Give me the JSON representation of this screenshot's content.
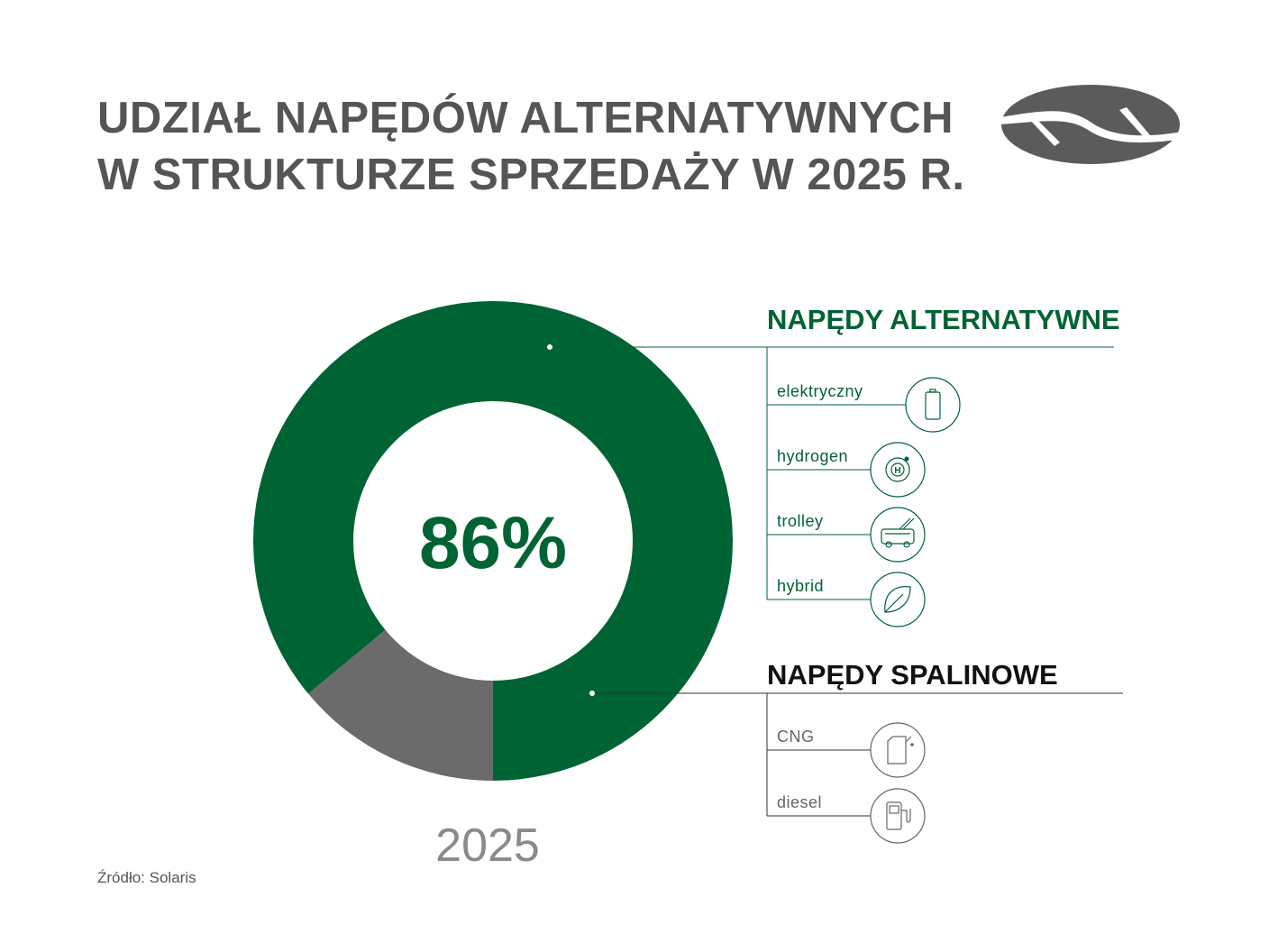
{
  "title_lines": [
    "UDZIAŁ NAPĘDÓW ALTERNATYWNYCH",
    "W STRUKTURZE SPRZEDAŻY W 2025 R."
  ],
  "source": "Źródło: Solaris",
  "colors": {
    "green": "#006333",
    "grey": "#6b6b6b",
    "text_grey": "#555555",
    "logo_grey": "#5b5b5b"
  },
  "chart_data": {
    "type": "pie",
    "title": "UDZIAŁ NAPĘDÓW ALTERNATYWNYCH W STRUKTURZE SPRZEDAŻY W 2025 R.",
    "year_label": "2025",
    "center_label": "86%",
    "categories": [
      "NAPĘDY ALTERNATYWNE",
      "NAPĘDY SPALINOWE"
    ],
    "values": [
      86,
      14
    ],
    "unit": "%"
  },
  "legend": {
    "alternative": {
      "heading": "NAPĘDY ALTERNATYWNE",
      "items": [
        {
          "label": "elektryczny",
          "icon": "battery-icon"
        },
        {
          "label": "hydrogen",
          "icon": "hydrogen-icon"
        },
        {
          "label": "trolley",
          "icon": "trolleybus-icon"
        },
        {
          "label": "hybrid",
          "icon": "leaf-icon"
        }
      ]
    },
    "combustion": {
      "heading": "NAPĘDY SPALINOWE",
      "items": [
        {
          "label": "CNG",
          "icon": "gas-canister-icon"
        },
        {
          "label": "diesel",
          "icon": "fuel-pump-icon"
        }
      ]
    }
  }
}
